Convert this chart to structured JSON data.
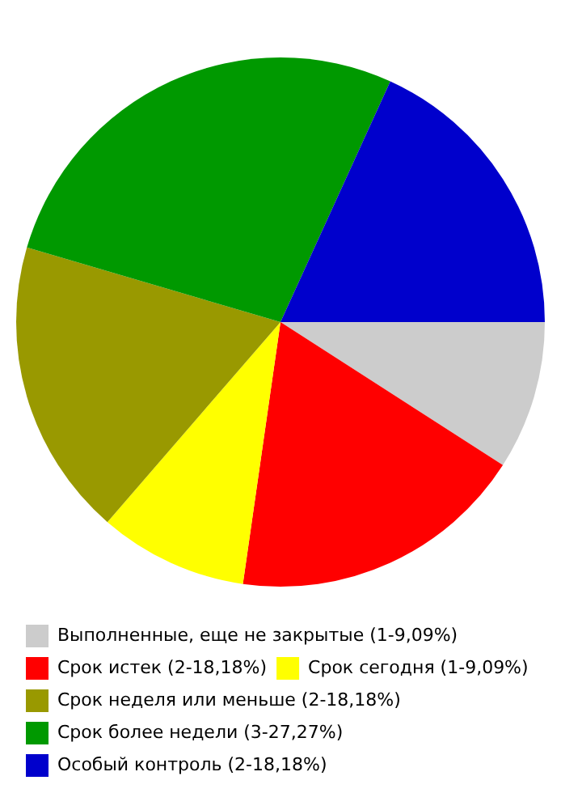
{
  "chart_data": {
    "type": "pie",
    "categories": [
      "Выполненные, еще не закрытые (1-9,09%)",
      "Срок истек (2-18,18%)",
      "Срок сегодня (1-9,09%)",
      "Срок неделя или меньше (2-18,18%)",
      "Срок более недели (3-27,27%)",
      "Особый контроль (2-18,18%)"
    ],
    "values": [
      1,
      2,
      1,
      2,
      3,
      2
    ],
    "colors": [
      "#cccccc",
      "#ff0000",
      "#ffff00",
      "#999900",
      "#009900",
      "#0000cc"
    ],
    "legend": "bottom"
  }
}
